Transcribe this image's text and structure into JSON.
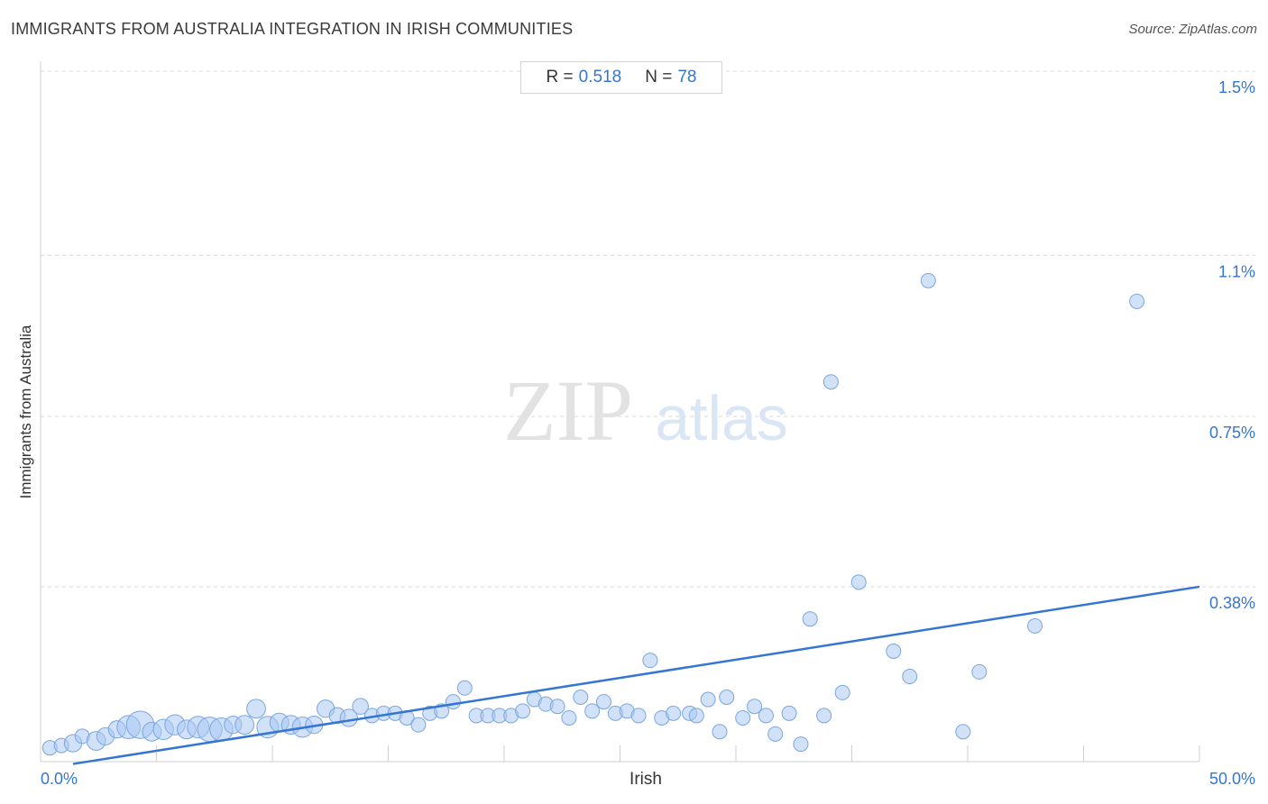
{
  "header": {
    "title": "IMMIGRANTS FROM AUSTRALIA INTEGRATION IN IRISH COMMUNITIES",
    "source": "Source: ZipAtlas.com"
  },
  "stats": {
    "r_label": "R =",
    "r_value": "0.518",
    "n_label": "N =",
    "n_value": "78"
  },
  "watermark": {
    "zip": "ZIP",
    "atlas": "atlas"
  },
  "colors": {
    "accent": "#3575d3",
    "point_fill": "#a9c8f2",
    "point_stroke": "#7aa6e0",
    "grid": "#d9d9d9"
  },
  "chart_data": {
    "type": "scatter",
    "xlabel": "Irish",
    "ylabel": "Immigrants from Australia",
    "xlim": [
      0,
      50
    ],
    "ylim": [
      0,
      1.5
    ],
    "x_tick_labels": [
      "0.0%",
      "50.0%"
    ],
    "y_ticks": [
      0.38,
      0.75,
      1.1,
      1.5
    ],
    "y_tick_labels": [
      "0.38%",
      "0.75%",
      "1.1%",
      "1.5%"
    ],
    "grid": true,
    "trendline": {
      "x": [
        0,
        50
      ],
      "y": [
        -0.005,
        0.38
      ]
    },
    "points": [
      {
        "x": 0.4,
        "y": 0.03,
        "s": 1
      },
      {
        "x": 0.9,
        "y": 0.035,
        "s": 1
      },
      {
        "x": 1.4,
        "y": 0.04,
        "s": 1.2
      },
      {
        "x": 1.8,
        "y": 0.055,
        "s": 1
      },
      {
        "x": 2.4,
        "y": 0.045,
        "s": 1.3
      },
      {
        "x": 2.8,
        "y": 0.055,
        "s": 1.2
      },
      {
        "x": 3.3,
        "y": 0.07,
        "s": 1.2
      },
      {
        "x": 3.8,
        "y": 0.075,
        "s": 1.6
      },
      {
        "x": 4.3,
        "y": 0.08,
        "s": 1.9
      },
      {
        "x": 4.8,
        "y": 0.065,
        "s": 1.3
      },
      {
        "x": 5.3,
        "y": 0.07,
        "s": 1.4
      },
      {
        "x": 5.8,
        "y": 0.08,
        "s": 1.4
      },
      {
        "x": 6.3,
        "y": 0.07,
        "s": 1.3
      },
      {
        "x": 6.8,
        "y": 0.075,
        "s": 1.5
      },
      {
        "x": 7.3,
        "y": 0.07,
        "s": 1.7
      },
      {
        "x": 7.8,
        "y": 0.07,
        "s": 1.6
      },
      {
        "x": 8.3,
        "y": 0.08,
        "s": 1.2
      },
      {
        "x": 8.8,
        "y": 0.08,
        "s": 1.3
      },
      {
        "x": 9.3,
        "y": 0.115,
        "s": 1.3
      },
      {
        "x": 9.8,
        "y": 0.075,
        "s": 1.5
      },
      {
        "x": 10.3,
        "y": 0.085,
        "s": 1.3
      },
      {
        "x": 10.8,
        "y": 0.08,
        "s": 1.3
      },
      {
        "x": 11.3,
        "y": 0.075,
        "s": 1.4
      },
      {
        "x": 11.8,
        "y": 0.08,
        "s": 1.2
      },
      {
        "x": 12.3,
        "y": 0.115,
        "s": 1.2
      },
      {
        "x": 12.8,
        "y": 0.1,
        "s": 1.1
      },
      {
        "x": 13.3,
        "y": 0.095,
        "s": 1.2
      },
      {
        "x": 13.8,
        "y": 0.12,
        "s": 1.1
      },
      {
        "x": 14.3,
        "y": 0.1,
        "s": 1
      },
      {
        "x": 14.8,
        "y": 0.105,
        "s": 1
      },
      {
        "x": 15.3,
        "y": 0.105,
        "s": 1
      },
      {
        "x": 15.8,
        "y": 0.095,
        "s": 1
      },
      {
        "x": 16.3,
        "y": 0.08,
        "s": 1
      },
      {
        "x": 16.8,
        "y": 0.105,
        "s": 1
      },
      {
        "x": 17.3,
        "y": 0.11,
        "s": 1
      },
      {
        "x": 17.8,
        "y": 0.13,
        "s": 1
      },
      {
        "x": 18.3,
        "y": 0.16,
        "s": 1
      },
      {
        "x": 18.8,
        "y": 0.1,
        "s": 1
      },
      {
        "x": 19.3,
        "y": 0.1,
        "s": 1
      },
      {
        "x": 19.8,
        "y": 0.1,
        "s": 1
      },
      {
        "x": 20.3,
        "y": 0.1,
        "s": 1
      },
      {
        "x": 20.8,
        "y": 0.11,
        "s": 1
      },
      {
        "x": 21.3,
        "y": 0.135,
        "s": 1
      },
      {
        "x": 21.8,
        "y": 0.125,
        "s": 1
      },
      {
        "x": 22.3,
        "y": 0.12,
        "s": 1
      },
      {
        "x": 22.8,
        "y": 0.095,
        "s": 1
      },
      {
        "x": 23.3,
        "y": 0.14,
        "s": 1
      },
      {
        "x": 23.8,
        "y": 0.11,
        "s": 1
      },
      {
        "x": 24.3,
        "y": 0.13,
        "s": 1
      },
      {
        "x": 24.8,
        "y": 0.105,
        "s": 1
      },
      {
        "x": 25.3,
        "y": 0.11,
        "s": 1
      },
      {
        "x": 25.8,
        "y": 0.1,
        "s": 1
      },
      {
        "x": 26.3,
        "y": 0.22,
        "s": 1
      },
      {
        "x": 26.8,
        "y": 0.095,
        "s": 1
      },
      {
        "x": 27.3,
        "y": 0.105,
        "s": 1
      },
      {
        "x": 28.0,
        "y": 0.105,
        "s": 1
      },
      {
        "x": 28.3,
        "y": 0.1,
        "s": 1
      },
      {
        "x": 28.8,
        "y": 0.135,
        "s": 1
      },
      {
        "x": 29.3,
        "y": 0.065,
        "s": 1
      },
      {
        "x": 29.6,
        "y": 0.14,
        "s": 1
      },
      {
        "x": 30.3,
        "y": 0.095,
        "s": 1
      },
      {
        "x": 30.8,
        "y": 0.12,
        "s": 1
      },
      {
        "x": 31.3,
        "y": 0.1,
        "s": 1
      },
      {
        "x": 31.7,
        "y": 0.06,
        "s": 1
      },
      {
        "x": 32.3,
        "y": 0.105,
        "s": 1
      },
      {
        "x": 32.8,
        "y": 0.038,
        "s": 1
      },
      {
        "x": 33.2,
        "y": 0.31,
        "s": 1
      },
      {
        "x": 33.8,
        "y": 0.1,
        "s": 1
      },
      {
        "x": 34.1,
        "y": 0.825,
        "s": 1
      },
      {
        "x": 34.6,
        "y": 0.15,
        "s": 1
      },
      {
        "x": 35.3,
        "y": 0.39,
        "s": 1
      },
      {
        "x": 36.8,
        "y": 0.24,
        "s": 1
      },
      {
        "x": 37.5,
        "y": 0.185,
        "s": 1
      },
      {
        "x": 38.3,
        "y": 1.045,
        "s": 1
      },
      {
        "x": 39.8,
        "y": 0.065,
        "s": 1
      },
      {
        "x": 40.5,
        "y": 0.195,
        "s": 1
      },
      {
        "x": 42.9,
        "y": 0.295,
        "s": 1
      },
      {
        "x": 47.3,
        "y": 1.0,
        "s": 1
      }
    ]
  }
}
